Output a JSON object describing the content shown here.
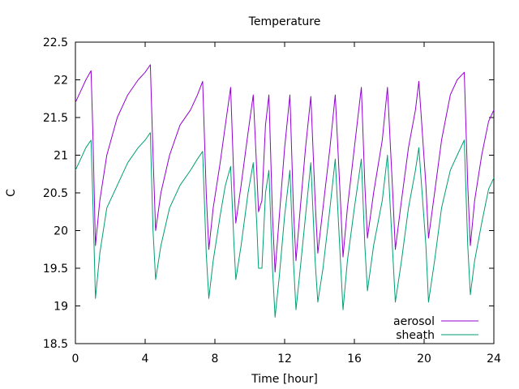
{
  "chart_data": {
    "type": "line",
    "title": "Temperature",
    "xlabel": "Time [hour]",
    "ylabel": "C",
    "xlim": [
      0,
      24
    ],
    "ylim": [
      18.5,
      22.5
    ],
    "xticks": [
      0,
      4,
      8,
      12,
      16,
      20,
      24
    ],
    "yticks": [
      18.5,
      19,
      19.5,
      20,
      20.5,
      21,
      21.5,
      22,
      22.5
    ],
    "xtick_labels": [
      "0",
      "4",
      "8",
      "12",
      "16",
      "20",
      "24"
    ],
    "ytick_labels": [
      "18.5",
      "19",
      "19.5",
      "20",
      "20.5",
      "21",
      "21.5",
      "22",
      "22.5"
    ],
    "grid": false,
    "legend_position": "bottom-right",
    "series": [
      {
        "name": "aerosol",
        "color": "#9400d3",
        "points": [
          [
            0.0,
            21.7
          ],
          [
            0.3,
            21.85
          ],
          [
            0.6,
            22.0
          ],
          [
            0.9,
            22.12
          ],
          [
            1.0,
            21.3
          ],
          [
            1.15,
            19.8
          ],
          [
            1.4,
            20.4
          ],
          [
            1.8,
            21.0
          ],
          [
            2.4,
            21.5
          ],
          [
            3.0,
            21.8
          ],
          [
            3.6,
            22.0
          ],
          [
            4.0,
            22.1
          ],
          [
            4.3,
            22.2
          ],
          [
            4.45,
            21.0
          ],
          [
            4.6,
            20.0
          ],
          [
            4.9,
            20.5
          ],
          [
            5.4,
            21.0
          ],
          [
            6.0,
            21.4
          ],
          [
            6.6,
            21.6
          ],
          [
            7.0,
            21.8
          ],
          [
            7.3,
            21.98
          ],
          [
            7.5,
            20.5
          ],
          [
            7.65,
            19.75
          ],
          [
            7.9,
            20.3
          ],
          [
            8.3,
            20.9
          ],
          [
            8.6,
            21.4
          ],
          [
            8.9,
            21.9
          ],
          [
            9.1,
            20.6
          ],
          [
            9.2,
            20.1
          ],
          [
            9.5,
            20.6
          ],
          [
            9.9,
            21.3
          ],
          [
            10.2,
            21.8
          ],
          [
            10.4,
            20.8
          ],
          [
            10.5,
            20.25
          ],
          [
            10.7,
            20.4
          ],
          [
            10.9,
            21.4
          ],
          [
            11.1,
            21.8
          ],
          [
            11.3,
            20.2
          ],
          [
            11.45,
            19.45
          ],
          [
            11.7,
            20.2
          ],
          [
            12.0,
            21.1
          ],
          [
            12.3,
            21.8
          ],
          [
            12.5,
            20.3
          ],
          [
            12.65,
            19.6
          ],
          [
            12.9,
            20.3
          ],
          [
            13.2,
            21.1
          ],
          [
            13.5,
            21.78
          ],
          [
            13.75,
            20.4
          ],
          [
            13.9,
            19.7
          ],
          [
            14.2,
            20.3
          ],
          [
            14.6,
            21.1
          ],
          [
            14.9,
            21.8
          ],
          [
            15.2,
            20.4
          ],
          [
            15.35,
            19.65
          ],
          [
            15.6,
            20.3
          ],
          [
            16.0,
            21.1
          ],
          [
            16.4,
            21.9
          ],
          [
            16.6,
            20.6
          ],
          [
            16.75,
            19.9
          ],
          [
            17.1,
            20.5
          ],
          [
            17.6,
            21.2
          ],
          [
            17.9,
            21.9
          ],
          [
            18.2,
            20.5
          ],
          [
            18.35,
            19.75
          ],
          [
            18.7,
            20.4
          ],
          [
            19.1,
            21.1
          ],
          [
            19.5,
            21.6
          ],
          [
            19.7,
            21.98
          ],
          [
            20.1,
            20.6
          ],
          [
            20.25,
            19.9
          ],
          [
            20.6,
            20.5
          ],
          [
            21.0,
            21.2
          ],
          [
            21.5,
            21.8
          ],
          [
            21.9,
            22.0
          ],
          [
            22.3,
            22.1
          ],
          [
            22.5,
            20.6
          ],
          [
            22.65,
            19.8
          ],
          [
            22.9,
            20.4
          ],
          [
            23.3,
            21.0
          ],
          [
            23.7,
            21.45
          ],
          [
            24.0,
            21.6
          ]
        ]
      },
      {
        "name": "sheath",
        "color": "#009e73",
        "points": [
          [
            0.0,
            20.8
          ],
          [
            0.3,
            20.95
          ],
          [
            0.6,
            21.1
          ],
          [
            0.9,
            21.2
          ],
          [
            1.0,
            20.4
          ],
          [
            1.15,
            19.1
          ],
          [
            1.4,
            19.7
          ],
          [
            1.8,
            20.3
          ],
          [
            2.4,
            20.6
          ],
          [
            3.0,
            20.9
          ],
          [
            3.6,
            21.1
          ],
          [
            4.0,
            21.2
          ],
          [
            4.3,
            21.3
          ],
          [
            4.45,
            20.0
          ],
          [
            4.6,
            19.35
          ],
          [
            4.9,
            19.8
          ],
          [
            5.4,
            20.3
          ],
          [
            6.0,
            20.6
          ],
          [
            6.6,
            20.8
          ],
          [
            7.0,
            20.95
          ],
          [
            7.3,
            21.05
          ],
          [
            7.5,
            19.7
          ],
          [
            7.65,
            19.1
          ],
          [
            7.9,
            19.6
          ],
          [
            8.3,
            20.2
          ],
          [
            8.6,
            20.6
          ],
          [
            8.9,
            20.85
          ],
          [
            9.1,
            19.8
          ],
          [
            9.2,
            19.35
          ],
          [
            9.5,
            19.8
          ],
          [
            9.9,
            20.5
          ],
          [
            10.2,
            20.9
          ],
          [
            10.4,
            20.1
          ],
          [
            10.5,
            19.5
          ],
          [
            10.7,
            19.5
          ],
          [
            10.9,
            20.5
          ],
          [
            11.1,
            20.8
          ],
          [
            11.3,
            19.5
          ],
          [
            11.45,
            18.85
          ],
          [
            11.7,
            19.4
          ],
          [
            12.0,
            20.2
          ],
          [
            12.3,
            20.8
          ],
          [
            12.5,
            19.6
          ],
          [
            12.65,
            18.95
          ],
          [
            12.9,
            19.5
          ],
          [
            13.2,
            20.2
          ],
          [
            13.5,
            20.9
          ],
          [
            13.75,
            19.6
          ],
          [
            13.9,
            19.05
          ],
          [
            14.2,
            19.5
          ],
          [
            14.6,
            20.3
          ],
          [
            14.9,
            20.95
          ],
          [
            15.2,
            19.6
          ],
          [
            15.35,
            18.95
          ],
          [
            15.6,
            19.6
          ],
          [
            16.0,
            20.3
          ],
          [
            16.4,
            20.95
          ],
          [
            16.6,
            19.8
          ],
          [
            16.75,
            19.2
          ],
          [
            17.1,
            19.8
          ],
          [
            17.6,
            20.4
          ],
          [
            17.9,
            21.0
          ],
          [
            18.2,
            19.7
          ],
          [
            18.35,
            19.05
          ],
          [
            18.7,
            19.6
          ],
          [
            19.1,
            20.3
          ],
          [
            19.5,
            20.8
          ],
          [
            19.7,
            21.1
          ],
          [
            20.1,
            19.8
          ],
          [
            20.25,
            19.05
          ],
          [
            20.6,
            19.6
          ],
          [
            21.0,
            20.3
          ],
          [
            21.5,
            20.8
          ],
          [
            21.9,
            21.0
          ],
          [
            22.3,
            21.2
          ],
          [
            22.5,
            19.8
          ],
          [
            22.65,
            19.15
          ],
          [
            22.9,
            19.6
          ],
          [
            23.3,
            20.1
          ],
          [
            23.7,
            20.55
          ],
          [
            24.0,
            20.7
          ]
        ]
      }
    ]
  }
}
